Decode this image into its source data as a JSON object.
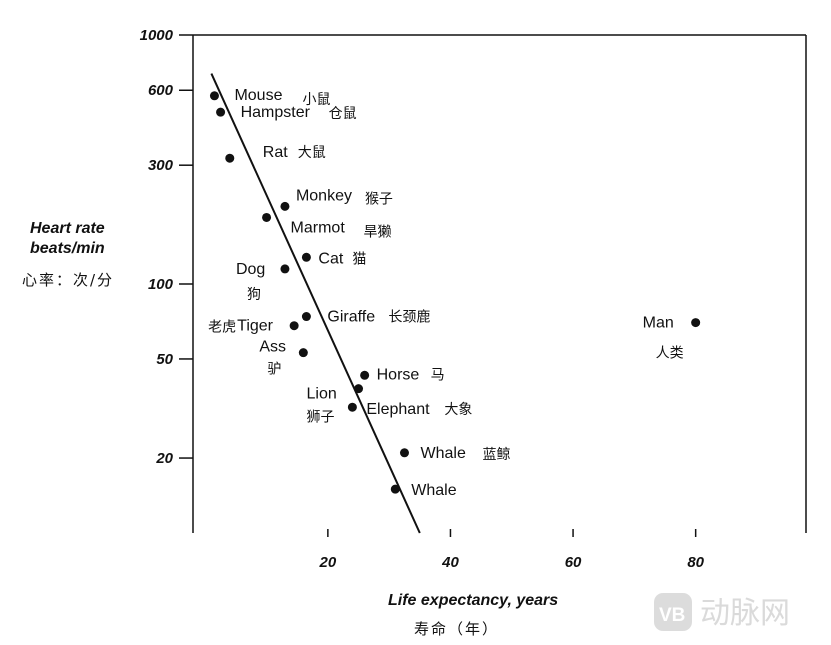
{
  "chart_data": {
    "type": "scatter",
    "xlabel": "Life expectancy, years",
    "xlabel_cn": "寿命（年）",
    "ylabel_line1": "Heart rate",
    "ylabel_line2": "beats/min",
    "ylabel_cn": "心率：次/分",
    "y_scale": "log",
    "xlim": [
      -2,
      98
    ],
    "ylim": [
      10,
      1000
    ],
    "x_ticks": [
      20,
      40,
      60,
      80
    ],
    "y_ticks": [
      1000,
      600,
      300,
      100,
      50,
      20
    ],
    "grid": false,
    "points": [
      {
        "name": "Mouse",
        "name_cn": "小鼠",
        "x": 1.5,
        "y": 570
      },
      {
        "name": "Hampster",
        "name_cn": "仓鼠",
        "x": 2.5,
        "y": 490
      },
      {
        "name": "Rat",
        "name_cn": "大鼠",
        "x": 4,
        "y": 320
      },
      {
        "name": "Monkey",
        "name_cn": "猴子",
        "x": 13,
        "y": 205
      },
      {
        "name": "Marmot",
        "name_cn": "旱獭",
        "x": 10,
        "y": 185
      },
      {
        "name": "Cat",
        "name_cn": "猫",
        "x": 16.5,
        "y": 128
      },
      {
        "name": "Dog",
        "name_cn": "狗",
        "x": 13,
        "y": 115
      },
      {
        "name": "Giraffe",
        "name_cn": "长颈鹿",
        "x": 16.5,
        "y": 74
      },
      {
        "name": "Tiger",
        "name_cn": "老虎",
        "x": 14.5,
        "y": 68
      },
      {
        "name": "Ass",
        "name_cn": "驴",
        "x": 16,
        "y": 53
      },
      {
        "name": "Horse",
        "name_cn": "马",
        "x": 26,
        "y": 43
      },
      {
        "name": "Lion",
        "name_cn": "狮子",
        "x": 25,
        "y": 38
      },
      {
        "name": "Elephant",
        "name_cn": "大象",
        "x": 24,
        "y": 32
      },
      {
        "name": "Whale",
        "name_cn": "蓝鲸",
        "x": 32.5,
        "y": 21
      },
      {
        "name": "Whale",
        "name_cn": "",
        "x": 31,
        "y": 15
      },
      {
        "name": "Man",
        "name_cn": "人类",
        "x": 80,
        "y": 70
      }
    ],
    "trend_line": {
      "x": [
        1,
        35
      ],
      "y": [
        700,
        10
      ]
    }
  },
  "watermark": {
    "text": "动脉网",
    "badge": "VB"
  }
}
